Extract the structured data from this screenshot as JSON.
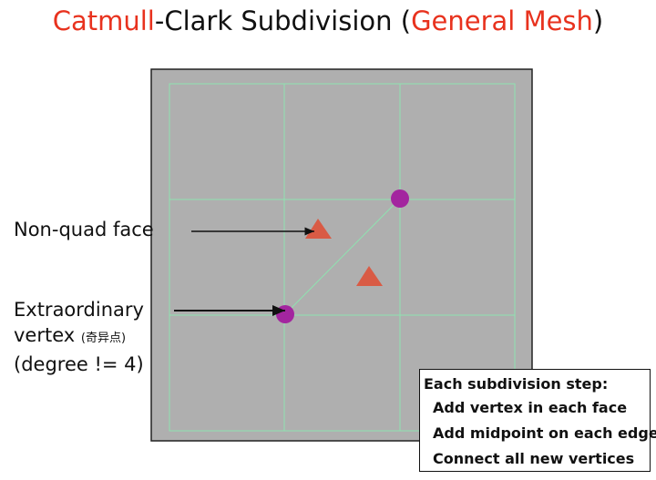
{
  "title": {
    "part1": "Catmull",
    "part2": "-Clark Subdivision (",
    "part3": "General Mesh",
    "part4": ")"
  },
  "labels": {
    "non_quad_face": "Non-quad face",
    "extraordinary_line1": "Extraordinary",
    "extraordinary_line2": "vertex",
    "extraordinary_chinese": "(奇异点)",
    "extraordinary_line3": "(degree != 4)"
  },
  "steps": {
    "heading": "Each subdivision step:",
    "items": [
      "Add vertex in each face",
      "Add midpoint on each edge",
      "Connect all new vertices"
    ]
  },
  "colors": {
    "accent": "#e8321e",
    "mesh_bg": "#afafaf",
    "grid": "#8fe3b0",
    "vertex": "#a3259f",
    "face_marker": "#d95b45"
  }
}
